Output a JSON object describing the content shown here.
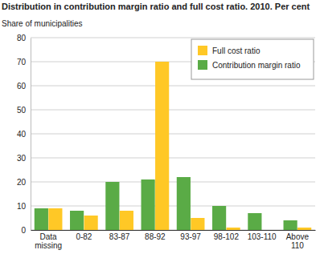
{
  "chart_data": {
    "type": "bar",
    "title": "Distribution in contribution margin ratio and full cost ratio. 2010. Per cent",
    "y_label": "Share of municipalities",
    "categories": [
      "Data missing",
      "0-82",
      "83-87",
      "88-92",
      "93-97",
      "98-102",
      "103-110",
      "Above 110"
    ],
    "series": [
      {
        "name": "Contribution margin ratio",
        "color": "#5aab46",
        "values": [
          9,
          8,
          20,
          21,
          22,
          10,
          7,
          4
        ]
      },
      {
        "name": "Full cost ratio",
        "color": "#ffc826",
        "values": [
          9,
          6,
          8,
          70,
          5,
          1,
          0,
          1
        ]
      }
    ],
    "ylim": [
      0,
      80
    ],
    "yticks": [
      0,
      10,
      20,
      30,
      40,
      50,
      60,
      70,
      80
    ],
    "grid": true,
    "legend": "top-right"
  }
}
